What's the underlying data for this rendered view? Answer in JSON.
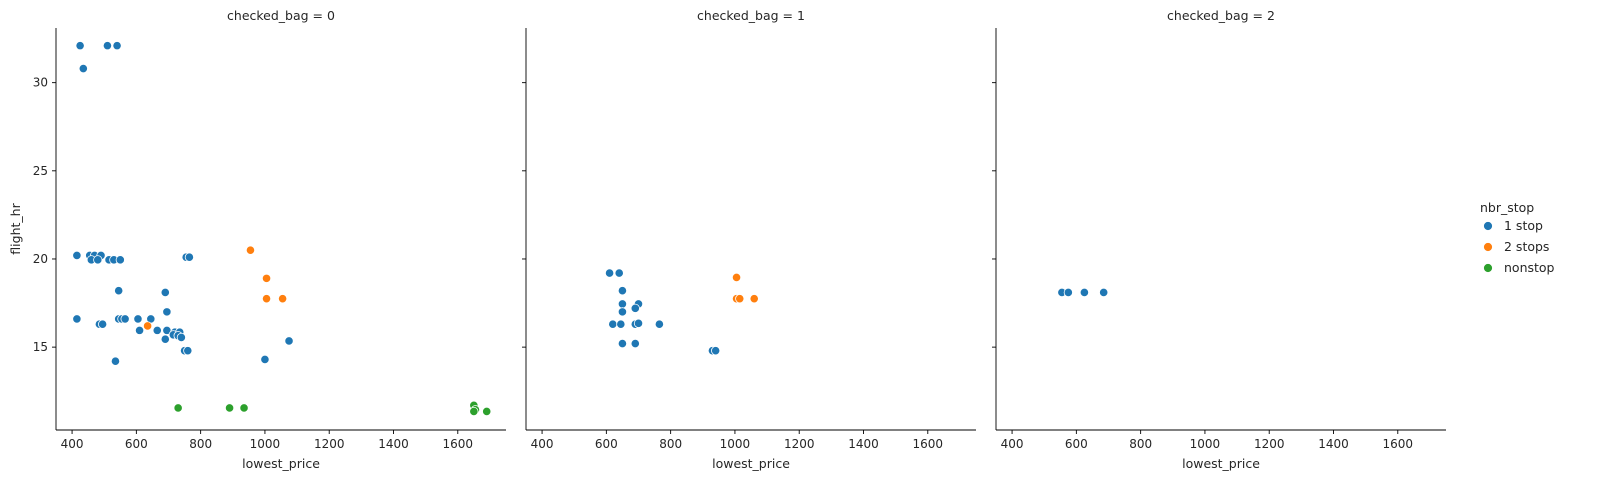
{
  "chart_data": {
    "type": "scatter",
    "x_label": "lowest_price",
    "y_label": "flight_hr",
    "xlim": [
      350,
      1750
    ],
    "ylim": [
      10.3,
      33.1
    ],
    "x_ticks": [
      400,
      600,
      800,
      1000,
      1200,
      1400,
      1600
    ],
    "y_ticks": [
      15,
      20,
      25,
      30
    ],
    "legend": {
      "title": "nbr_stop",
      "placement": "right",
      "entries": [
        {
          "label": "1 stop",
          "color": "#1f77b4"
        },
        {
          "label": "2 stops",
          "color": "#ff7f0e"
        },
        {
          "label": "nonstop",
          "color": "#2ca02c"
        }
      ]
    },
    "panels": [
      {
        "title": "checked_bag = 0",
        "series": [
          {
            "name": "1 stop",
            "points": [
              [
                425,
                32.1
              ],
              [
                510,
                32.1
              ],
              [
                540,
                32.1
              ],
              [
                435,
                30.8
              ],
              [
                415,
                20.2
              ],
              [
                455,
                20.2
              ],
              [
                470,
                20.2
              ],
              [
                490,
                20.2
              ],
              [
                460,
                19.95
              ],
              [
                480,
                19.95
              ],
              [
                515,
                19.95
              ],
              [
                530,
                19.95
              ],
              [
                550,
                19.95
              ],
              [
                755,
                20.1
              ],
              [
                765,
                20.1
              ],
              [
                545,
                18.2
              ],
              [
                690,
                18.1
              ],
              [
                695,
                17.0
              ],
              [
                415,
                16.6
              ],
              [
                545,
                16.6
              ],
              [
                555,
                16.6
              ],
              [
                565,
                16.6
              ],
              [
                605,
                16.6
              ],
              [
                645,
                16.6
              ],
              [
                485,
                16.3
              ],
              [
                495,
                16.3
              ],
              [
                610,
                15.95
              ],
              [
                665,
                15.95
              ],
              [
                695,
                15.95
              ],
              [
                720,
                15.85
              ],
              [
                735,
                15.85
              ],
              [
                715,
                15.7
              ],
              [
                730,
                15.65
              ],
              [
                740,
                15.55
              ],
              [
                690,
                15.45
              ],
              [
                1075,
                15.35
              ],
              [
                750,
                14.8
              ],
              [
                760,
                14.8
              ],
              [
                1000,
                14.3
              ],
              [
                535,
                14.2
              ]
            ]
          },
          {
            "name": "2 stops",
            "points": [
              [
                955,
                20.5
              ],
              [
                1005,
                18.9
              ],
              [
                1005,
                17.75
              ],
              [
                1055,
                17.75
              ],
              [
                635,
                16.2
              ]
            ]
          },
          {
            "name": "nonstop",
            "points": [
              [
                730,
                11.55
              ],
              [
                890,
                11.55
              ],
              [
                935,
                11.55
              ],
              [
                1650,
                11.7
              ],
              [
                1655,
                11.45
              ],
              [
                1650,
                11.35
              ],
              [
                1690,
                11.35
              ]
            ]
          }
        ]
      },
      {
        "title": "checked_bag = 1",
        "series": [
          {
            "name": "1 stop",
            "points": [
              [
                610,
                19.2
              ],
              [
                640,
                19.2
              ],
              [
                650,
                18.2
              ],
              [
                650,
                17.45
              ],
              [
                700,
                17.45
              ],
              [
                690,
                17.2
              ],
              [
                650,
                17.0
              ],
              [
                620,
                16.3
              ],
              [
                645,
                16.3
              ],
              [
                690,
                16.3
              ],
              [
                700,
                16.35
              ],
              [
                765,
                16.3
              ],
              [
                650,
                15.2
              ],
              [
                690,
                15.2
              ],
              [
                930,
                14.8
              ],
              [
                940,
                14.8
              ]
            ]
          },
          {
            "name": "2 stops",
            "points": [
              [
                1005,
                18.95
              ],
              [
                1005,
                17.75
              ],
              [
                1015,
                17.75
              ],
              [
                1060,
                17.75
              ]
            ]
          },
          {
            "name": "nonstop",
            "points": []
          }
        ]
      },
      {
        "title": "checked_bag = 2",
        "series": [
          {
            "name": "1 stop",
            "points": [
              [
                555,
                18.1
              ],
              [
                575,
                18.1
              ],
              [
                625,
                18.1
              ],
              [
                685,
                18.1
              ]
            ]
          },
          {
            "name": "2 stops",
            "points": []
          },
          {
            "name": "nonstop",
            "points": []
          }
        ]
      }
    ]
  }
}
